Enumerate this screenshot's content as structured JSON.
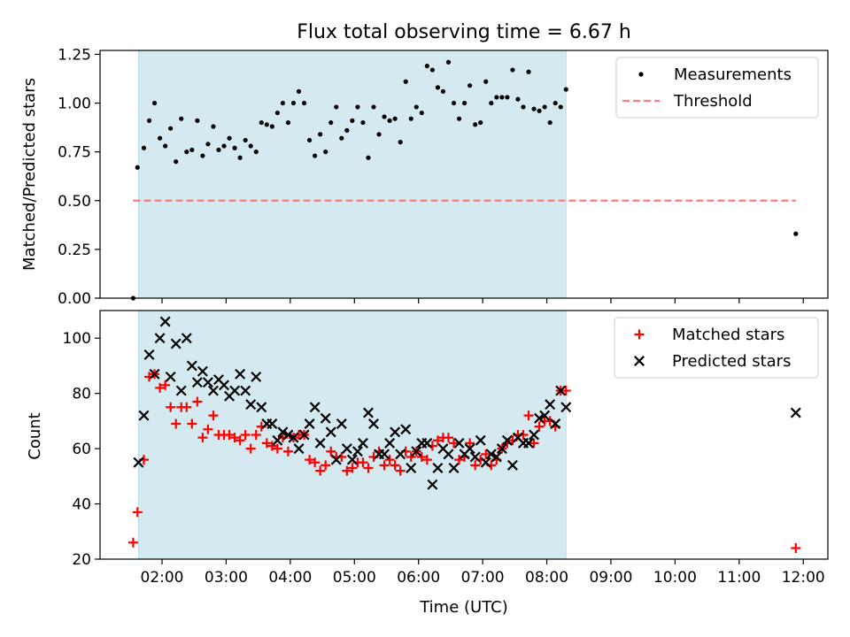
{
  "chart_data": [
    {
      "type": "scatter",
      "title": "Flux total observing time = 6.67 h",
      "xlabel": "",
      "ylabel": "Matched/Predicted stars",
      "ylim": [
        0,
        1.27
      ],
      "yticks": [
        "0.00",
        "0.25",
        "0.50",
        "0.75",
        "1.00",
        "1.25"
      ],
      "shaded_span": {
        "x_start": "01:38",
        "x_end": "08:18",
        "color": "#d4eaf0"
      },
      "legend_position": "top-right",
      "series": [
        {
          "name": "Measurements",
          "marker": "dot",
          "color": "#000000",
          "points": [
            [
              "01:33",
              0.0
            ],
            [
              "01:37",
              0.67
            ],
            [
              "01:43",
              0.77
            ],
            [
              "01:48",
              0.91
            ],
            [
              "01:53",
              1.0
            ],
            [
              "01:58",
              0.82
            ],
            [
              "02:03",
              0.78
            ],
            [
              "02:08",
              0.87
            ],
            [
              "02:13",
              0.7
            ],
            [
              "02:18",
              0.92
            ],
            [
              "02:23",
              0.75
            ],
            [
              "02:28",
              0.76
            ],
            [
              "02:33",
              0.91
            ],
            [
              "02:38",
              0.73
            ],
            [
              "02:43",
              0.79
            ],
            [
              "02:48",
              0.88
            ],
            [
              "02:53",
              0.76
            ],
            [
              "02:58",
              0.78
            ],
            [
              "03:03",
              0.82
            ],
            [
              "03:08",
              0.77
            ],
            [
              "03:13",
              0.72
            ],
            [
              "03:18",
              0.81
            ],
            [
              "03:23",
              0.78
            ],
            [
              "03:28",
              0.75
            ],
            [
              "03:33",
              0.9
            ],
            [
              "03:38",
              0.89
            ],
            [
              "03:43",
              0.88
            ],
            [
              "03:48",
              0.95
            ],
            [
              "03:53",
              1.0
            ],
            [
              "03:58",
              0.9
            ],
            [
              "04:03",
              1.0
            ],
            [
              "04:08",
              1.06
            ],
            [
              "04:13",
              1.0
            ],
            [
              "04:18",
              0.81
            ],
            [
              "04:23",
              0.73
            ],
            [
              "04:28",
              0.84
            ],
            [
              "04:33",
              0.75
            ],
            [
              "04:38",
              0.9
            ],
            [
              "04:43",
              0.98
            ],
            [
              "04:48",
              0.82
            ],
            [
              "04:53",
              0.86
            ],
            [
              "04:58",
              0.91
            ],
            [
              "05:03",
              0.98
            ],
            [
              "05:08",
              0.9
            ],
            [
              "05:13",
              0.72
            ],
            [
              "05:18",
              0.98
            ],
            [
              "05:23",
              0.84
            ],
            [
              "05:28",
              0.93
            ],
            [
              "05:33",
              0.91
            ],
            [
              "05:38",
              0.92
            ],
            [
              "05:43",
              0.8
            ],
            [
              "05:48",
              1.11
            ],
            [
              "05:53",
              0.92
            ],
            [
              "05:58",
              0.98
            ],
            [
              "06:03",
              0.95
            ],
            [
              "06:08",
              1.19
            ],
            [
              "06:13",
              1.17
            ],
            [
              "06:18",
              1.08
            ],
            [
              "06:23",
              1.06
            ],
            [
              "06:28",
              1.21
            ],
            [
              "06:33",
              1.0
            ],
            [
              "06:38",
              0.92
            ],
            [
              "06:43",
              1.0
            ],
            [
              "06:48",
              1.09
            ],
            [
              "06:53",
              0.89
            ],
            [
              "06:58",
              0.9
            ],
            [
              "07:03",
              1.11
            ],
            [
              "07:08",
              1.0
            ],
            [
              "07:13",
              1.03
            ],
            [
              "07:18",
              1.03
            ],
            [
              "07:23",
              1.03
            ],
            [
              "07:28",
              1.17
            ],
            [
              "07:33",
              1.02
            ],
            [
              "07:38",
              0.98
            ],
            [
              "07:43",
              1.16
            ],
            [
              "07:48",
              0.97
            ],
            [
              "07:53",
              0.96
            ],
            [
              "07:58",
              0.98
            ],
            [
              "08:03",
              0.9
            ],
            [
              "08:08",
              1.0
            ],
            [
              "08:13",
              0.98
            ],
            [
              "08:18",
              1.07
            ],
            [
              "11:53",
              0.33
            ]
          ]
        },
        {
          "name": "Threshold",
          "marker": "dashed-line",
          "color": "#ff7a7a",
          "points": [
            [
              "01:33",
              0.5
            ],
            [
              "11:53",
              0.5
            ]
          ]
        }
      ]
    },
    {
      "type": "scatter",
      "title": "",
      "xlabel": "Time (UTC)",
      "ylabel": "Count",
      "ylim": [
        20,
        110
      ],
      "yticks": [
        "20",
        "40",
        "60",
        "80",
        "100"
      ],
      "xticks": [
        "02:00",
        "03:00",
        "04:00",
        "05:00",
        "06:00",
        "07:00",
        "08:00",
        "09:00",
        "10:00",
        "11:00",
        "12:00"
      ],
      "shaded_span": {
        "x_start": "01:38",
        "x_end": "08:18",
        "color": "#d4eaf0"
      },
      "legend_position": "top-right",
      "series": [
        {
          "name": "Matched stars",
          "marker": "plus",
          "color": "#ff0000",
          "points": [
            [
              "01:33",
              26
            ],
            [
              "01:37",
              37
            ],
            [
              "01:43",
              56
            ],
            [
              "01:48",
              86
            ],
            [
              "01:53",
              87
            ],
            [
              "01:58",
              82
            ],
            [
              "02:03",
              83
            ],
            [
              "02:08",
              75
            ],
            [
              "02:13",
              69
            ],
            [
              "02:18",
              75
            ],
            [
              "02:23",
              75
            ],
            [
              "02:28",
              69
            ],
            [
              "02:33",
              77
            ],
            [
              "02:38",
              64
            ],
            [
              "02:43",
              67
            ],
            [
              "02:48",
              72
            ],
            [
              "02:53",
              65
            ],
            [
              "02:58",
              65
            ],
            [
              "03:03",
              65
            ],
            [
              "03:08",
              64
            ],
            [
              "03:13",
              63
            ],
            [
              "03:18",
              65
            ],
            [
              "03:23",
              60
            ],
            [
              "03:28",
              65
            ],
            [
              "03:33",
              68
            ],
            [
              "03:38",
              62
            ],
            [
              "03:43",
              61
            ],
            [
              "03:48",
              60
            ],
            [
              "03:53",
              64
            ],
            [
              "03:58",
              59
            ],
            [
              "04:03",
              64
            ],
            [
              "04:08",
              65
            ],
            [
              "04:13",
              65
            ],
            [
              "04:18",
              56
            ],
            [
              "04:23",
              55
            ],
            [
              "04:28",
              52
            ],
            [
              "04:33",
              54
            ],
            [
              "04:38",
              59
            ],
            [
              "04:43",
              57
            ],
            [
              "04:48",
              57
            ],
            [
              "04:53",
              52
            ],
            [
              "04:58",
              53
            ],
            [
              "05:03",
              55
            ],
            [
              "05:08",
              55
            ],
            [
              "05:13",
              53
            ],
            [
              "05:18",
              57
            ],
            [
              "05:23",
              59
            ],
            [
              "05:28",
              54
            ],
            [
              "05:33",
              56
            ],
            [
              "05:38",
              54
            ],
            [
              "05:43",
              52
            ],
            [
              "05:48",
              59
            ],
            [
              "05:53",
              57
            ],
            [
              "05:58",
              59
            ],
            [
              "06:03",
              57
            ],
            [
              "06:08",
              56
            ],
            [
              "06:13",
              61
            ],
            [
              "06:18",
              63
            ],
            [
              "06:23",
              64
            ],
            [
              "06:28",
              64
            ],
            [
              "06:33",
              62
            ],
            [
              "06:38",
              56
            ],
            [
              "06:43",
              57
            ],
            [
              "06:48",
              62
            ],
            [
              "06:53",
              54
            ],
            [
              "06:58",
              56
            ],
            [
              "07:03",
              58
            ],
            [
              "07:08",
              54
            ],
            [
              "07:13",
              56
            ],
            [
              "07:18",
              60
            ],
            [
              "07:23",
              62
            ],
            [
              "07:28",
              63
            ],
            [
              "07:33",
              65
            ],
            [
              "07:38",
              65
            ],
            [
              "07:43",
              72
            ],
            [
              "07:48",
              62
            ],
            [
              "07:53",
              68
            ],
            [
              "07:58",
              70
            ],
            [
              "08:03",
              70
            ],
            [
              "08:08",
              68
            ],
            [
              "08:13",
              81
            ],
            [
              "08:18",
              81
            ],
            [
              "11:53",
              24
            ]
          ]
        },
        {
          "name": "Predicted stars",
          "marker": "x",
          "color": "#000000",
          "points": [
            [
              "01:38",
              55
            ],
            [
              "01:43",
              72
            ],
            [
              "01:48",
              94
            ],
            [
              "01:53",
              87
            ],
            [
              "01:58",
              100
            ],
            [
              "02:03",
              106
            ],
            [
              "02:08",
              86
            ],
            [
              "02:13",
              98
            ],
            [
              "02:18",
              81
            ],
            [
              "02:23",
              100
            ],
            [
              "02:28",
              90
            ],
            [
              "02:33",
              84
            ],
            [
              "02:38",
              88
            ],
            [
              "02:43",
              84
            ],
            [
              "02:48",
              81
            ],
            [
              "02:53",
              85
            ],
            [
              "02:58",
              83
            ],
            [
              "03:03",
              79
            ],
            [
              "03:08",
              81
            ],
            [
              "03:13",
              87
            ],
            [
              "03:18",
              81
            ],
            [
              "03:23",
              76
            ],
            [
              "03:28",
              86
            ],
            [
              "03:33",
              75
            ],
            [
              "03:38",
              69
            ],
            [
              "03:43",
              69
            ],
            [
              "03:48",
              63
            ],
            [
              "03:53",
              66
            ],
            [
              "03:58",
              65
            ],
            [
              "04:03",
              64
            ],
            [
              "04:08",
              60
            ],
            [
              "04:13",
              65
            ],
            [
              "04:18",
              69
            ],
            [
              "04:23",
              75
            ],
            [
              "04:28",
              62
            ],
            [
              "04:33",
              71
            ],
            [
              "04:38",
              66
            ],
            [
              "04:43",
              56
            ],
            [
              "04:48",
              69
            ],
            [
              "04:53",
              60
            ],
            [
              "04:58",
              56
            ],
            [
              "05:03",
              59
            ],
            [
              "05:08",
              62
            ],
            [
              "05:13",
              73
            ],
            [
              "05:18",
              69
            ],
            [
              "05:23",
              58
            ],
            [
              "05:28",
              58
            ],
            [
              "05:33",
              62
            ],
            [
              "05:38",
              66
            ],
            [
              "05:43",
              58
            ],
            [
              "05:48",
              67
            ],
            [
              "05:53",
              53
            ],
            [
              "05:58",
              59
            ],
            [
              "06:03",
              62
            ],
            [
              "06:08",
              62
            ],
            [
              "06:13",
              47
            ],
            [
              "06:18",
              53
            ],
            [
              "06:23",
              60
            ],
            [
              "06:28",
              58
            ],
            [
              "06:33",
              53
            ],
            [
              "06:38",
              62
            ],
            [
              "06:43",
              58
            ],
            [
              "06:48",
              60
            ],
            [
              "06:53",
              57
            ],
            [
              "06:58",
              63
            ],
            [
              "07:03",
              55
            ],
            [
              "07:08",
              58
            ],
            [
              "07:13",
              57
            ],
            [
              "07:18",
              60
            ],
            [
              "07:23",
              63
            ],
            [
              "07:28",
              54
            ],
            [
              "07:33",
              64
            ],
            [
              "07:38",
              62
            ],
            [
              "07:43",
              62
            ],
            [
              "07:48",
              65
            ],
            [
              "07:53",
              71
            ],
            [
              "07:58",
              72
            ],
            [
              "08:03",
              76
            ],
            [
              "08:08",
              69
            ],
            [
              "08:13",
              81
            ],
            [
              "08:18",
              75
            ],
            [
              "11:53",
              73
            ]
          ]
        }
      ]
    }
  ]
}
